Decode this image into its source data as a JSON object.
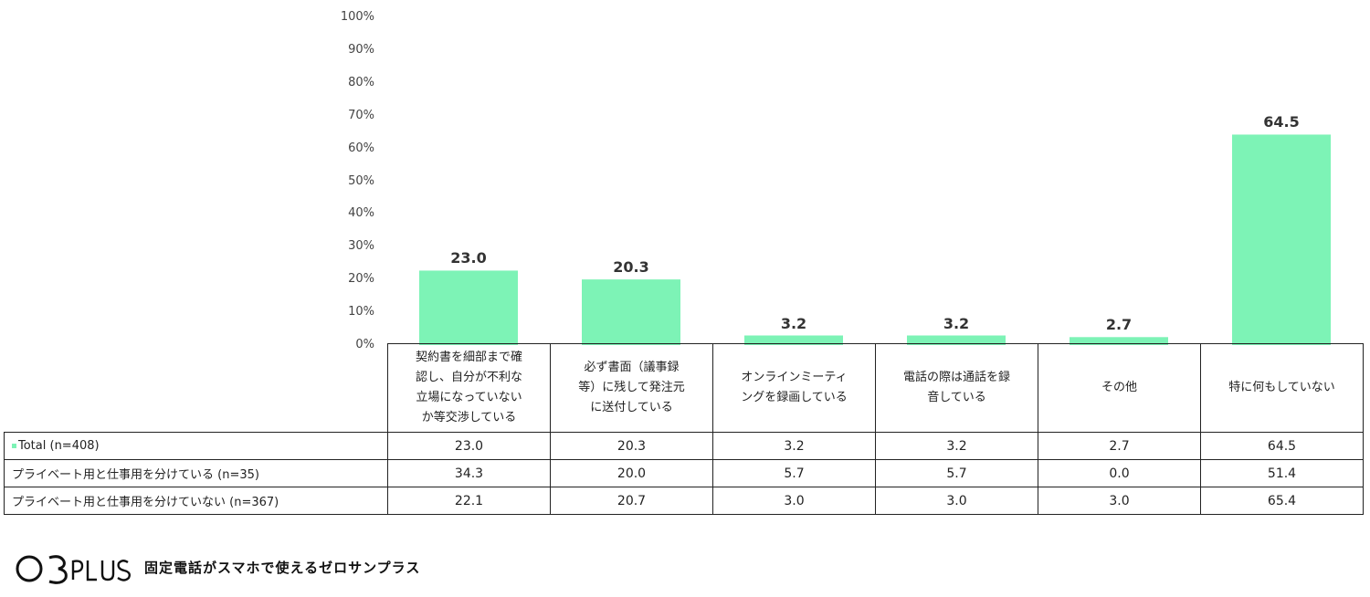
{
  "chart_data": {
    "type": "bar",
    "ylim": [
      0,
      100
    ],
    "yticks": [
      "0%",
      "10%",
      "20%",
      "30%",
      "40%",
      "50%",
      "60%",
      "70%",
      "80%",
      "90%",
      "100%"
    ],
    "categories": [
      "契約書を細部まで確認し、自分が不利な立場になっていないか等交渉している",
      "必ず書面（議事録等）に残して発注元に送付している",
      "オンラインミーティングを録画している",
      "電話の際は通話を録音している",
      "その他",
      "特に何もしていない"
    ],
    "series": [
      {
        "name": "Total (n=408)",
        "values": [
          23.0,
          20.3,
          3.2,
          3.2,
          2.7,
          64.5
        ],
        "color": "#7df3b6"
      },
      {
        "name": "プライベート用と仕事用を分けている (n=35)",
        "values": [
          34.3,
          20.0,
          5.7,
          5.7,
          0.0,
          51.4
        ]
      },
      {
        "name": "プライベート用と仕事用を分けていない (n=367)",
        "values": [
          22.1,
          20.7,
          3.0,
          3.0,
          3.0,
          65.4
        ]
      }
    ],
    "bar_labels": [
      "23.0",
      "20.3",
      "3.2",
      "3.2",
      "2.7",
      "64.5"
    ],
    "table": {
      "category_lines": [
        [
          "契約書を細部まで確",
          "認し、自分が不利な",
          "立場になっていない",
          "か等交渉している"
        ],
        [
          "必ず書面（議事録",
          "等）に残して発注元",
          "に送付している"
        ],
        [
          "オンラインミーティ",
          "ングを録画している"
        ],
        [
          "電話の際は通話を録",
          "音している"
        ],
        [
          "その他"
        ],
        [
          "特に何もしていない"
        ]
      ],
      "rows": [
        {
          "label": "Total (n=408)",
          "values": [
            "23.0",
            "20.3",
            "3.2",
            "3.2",
            "2.7",
            "64.5"
          ]
        },
        {
          "label": "プライベート用と仕事用を分けている (n=35)",
          "values": [
            "34.3",
            "20.0",
            "5.7",
            "5.7",
            "0.0",
            "51.4"
          ]
        },
        {
          "label": "プライベート用と仕事用を分けていない (n=367)",
          "values": [
            "22.1",
            "20.7",
            "3.0",
            "3.0",
            "3.0",
            "65.4"
          ]
        }
      ]
    }
  },
  "footer": {
    "logo_text": "03PLUS",
    "tagline": "固定電話がスマホで使えるゼロサンプラス"
  }
}
